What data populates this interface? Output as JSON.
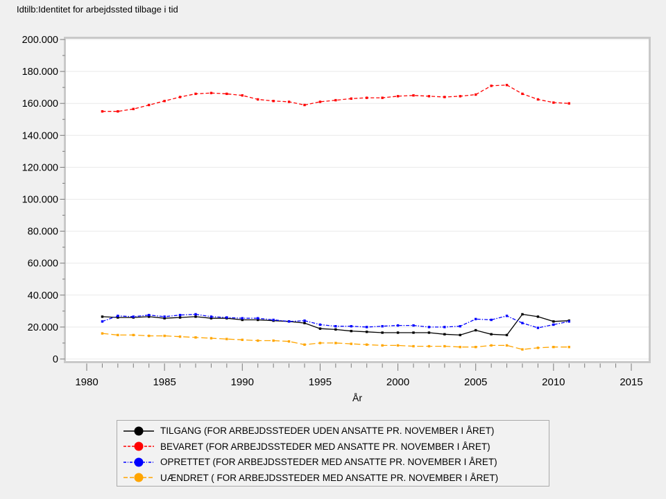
{
  "window": {
    "background": "#f0f0f0",
    "plot_background": "#ffffff",
    "plot_border_color": "#c9c9c9",
    "gridline_color": "#e9e9e9",
    "tick_color": "#777777",
    "text_color": "#000000",
    "legend_border_color": "#a9a9a9",
    "legend_background": "#f2f2f2"
  },
  "chart_data": {
    "type": "line",
    "title": "Idtilb:Identitet for arbejdssted tilbage i tid",
    "xlabel": "År",
    "ylabel": "",
    "xlim": [
      1978.6,
      2016.1
    ],
    "ylim": [
      0,
      200000
    ],
    "xticks": [
      1980,
      1985,
      1990,
      1995,
      2000,
      2005,
      2010,
      2015
    ],
    "yticks": [
      0,
      20000,
      40000,
      60000,
      80000,
      100000,
      120000,
      140000,
      160000,
      180000,
      200000
    ],
    "ytick_labels": [
      "0",
      "20.000",
      "40.000",
      "60.000",
      "80.000",
      "100.000",
      "120.000",
      "140.000",
      "160.000",
      "180.000",
      "200.000"
    ],
    "grid": "horizontal-major",
    "legend_position": "bottom-center",
    "x": [
      1981,
      1982,
      1983,
      1984,
      1985,
      1986,
      1987,
      1988,
      1989,
      1990,
      1991,
      1992,
      1993,
      1994,
      1995,
      1996,
      1997,
      1998,
      1999,
      2000,
      2001,
      2002,
      2003,
      2004,
      2005,
      2006,
      2007,
      2008,
      2009,
      2010,
      2011
    ],
    "series": [
      {
        "name": "TILGANG (FOR ARBEJDSSTEDER UDEN ANSATTE PR. NOVEMBER I ÅRET)",
        "color": "#000000",
        "dash": "solid",
        "marker": "square",
        "values": [
          26500,
          26000,
          26000,
          26500,
          25500,
          26000,
          26500,
          25500,
          25500,
          24500,
          24500,
          24000,
          23500,
          22500,
          19000,
          18500,
          17500,
          17000,
          16500,
          16500,
          16500,
          16500,
          15500,
          15000,
          18000,
          15500,
          15000,
          28000,
          26500,
          23500,
          24000
        ]
      },
      {
        "name": "BEVARET (FOR ARBEJDSSTEDER MED ANSATTE PR. NOVEMBER I ÅRET)",
        "color": "#ff0000",
        "dash": "dashed",
        "marker": "square",
        "values": [
          155000,
          155000,
          156500,
          159000,
          161500,
          164000,
          166000,
          166500,
          166000,
          165000,
          162500,
          161500,
          161000,
          159000,
          161000,
          162000,
          163000,
          163500,
          163500,
          164500,
          165000,
          164500,
          164000,
          164500,
          165500,
          171000,
          171500,
          166000,
          162500,
          160500,
          160000
        ]
      },
      {
        "name": "OPRETTET (FOR ARBEJDSSTEDER MED ANSATTE PR. NOVEMBER I ÅRET)",
        "color": "#0000ff",
        "dash": "dashdot",
        "marker": "square",
        "values": [
          23500,
          27000,
          26500,
          27500,
          26500,
          27500,
          28000,
          26500,
          26000,
          25500,
          25500,
          24500,
          23500,
          24000,
          21500,
          20500,
          20500,
          20000,
          20500,
          21000,
          21000,
          20000,
          20000,
          20500,
          25000,
          24500,
          27000,
          22500,
          19500,
          21500,
          23500
        ]
      },
      {
        "name": "UÆNDRET ( FOR ARBEJDSSTEDER MED ANSATTE PR. NOVEMBER I ÅRET)",
        "color": "#ffa500",
        "dash": "longdash",
        "marker": "square",
        "values": [
          16000,
          15000,
          15000,
          14500,
          14500,
          14000,
          13500,
          13000,
          12500,
          12000,
          11500,
          11500,
          11000,
          9000,
          10000,
          10000,
          9500,
          9000,
          8500,
          8500,
          8000,
          8000,
          8000,
          7500,
          7500,
          8500,
          8500,
          6000,
          7000,
          7500,
          7500
        ]
      }
    ]
  }
}
